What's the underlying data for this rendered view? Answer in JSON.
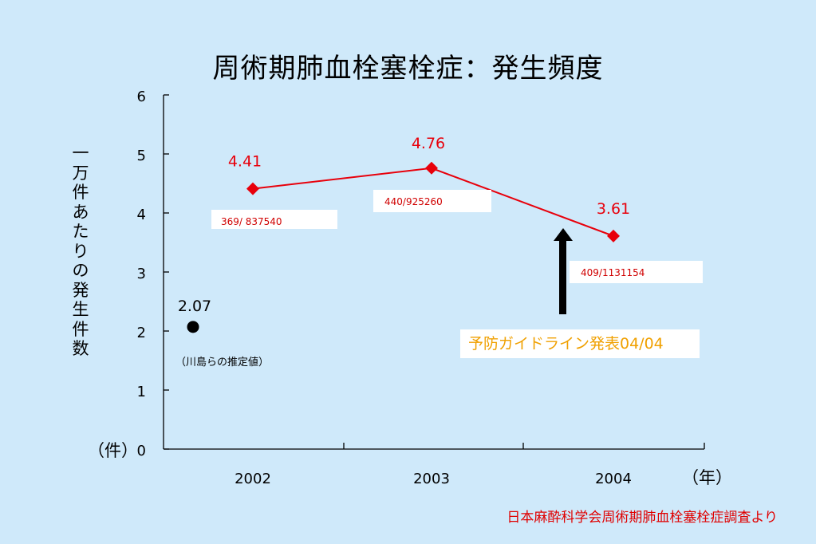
{
  "chart_data": {
    "type": "line",
    "title": "周術期肺血栓塞栓症：発生頻度",
    "ylabel": "一万件あたりの発生件数",
    "y_unit": "（件）",
    "x_unit": "（年）",
    "categories": [
      "2002",
      "2003",
      "2004"
    ],
    "ylim": [
      0,
      6
    ],
    "yticks": [
      "0",
      "1",
      "2",
      "3",
      "4",
      "5",
      "6"
    ],
    "series": [
      {
        "values": [
          4.41,
          4.76,
          3.61
        ],
        "value_labels": [
          "4.41",
          "4.76",
          "3.61"
        ],
        "fraction_labels": [
          "369/ 837540",
          "440/925260",
          "409/1131154"
        ],
        "color": "#e8000b",
        "marker": "diamond"
      }
    ],
    "estimate_point": {
      "value": 2.07,
      "label": "2.07",
      "note": "（川島らの推定値）",
      "color": "#000000",
      "marker": "circle"
    },
    "annotation": {
      "text": "予防ガイドライン発表04/04",
      "color": "#f0a000"
    },
    "source": "日本麻酔科学会周術期肺血栓塞栓症調査より"
  }
}
